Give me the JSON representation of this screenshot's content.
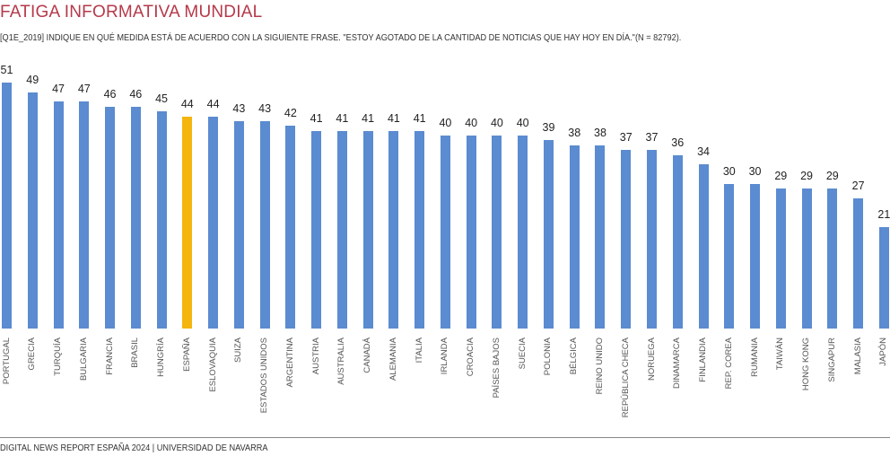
{
  "header": {
    "title": "FATIGA INFORMATIVA MUNDIAL",
    "subtitle": "[Q1E_2019] INDIQUE EN QUÉ MEDIDA ESTÁ DE ACUERDO CON LA SIGUIENTE FRASE. \"ESTOY AGOTADO DE LA CANTIDAD DE NOTICIAS QUE HAY HOY EN DÍA.\"(N = 82792)."
  },
  "footer": {
    "text": "DIGITAL NEWS REPORT ESPAÑA 2024 | UNIVERSIDAD DE NAVARRA"
  },
  "chart_data": {
    "type": "bar",
    "title": "FATIGA INFORMATIVA MUNDIAL",
    "xlabel": "",
    "ylabel": "",
    "ylim": [
      0,
      51
    ],
    "grid": false,
    "categories": [
      "PORTUGAL",
      "GRECIA",
      "TURQUÍA",
      "BULGARIA",
      "FRANCIA",
      "BRASIL",
      "HUNGRÍA",
      "ESPAÑA",
      "ESLOVAQUIA",
      "SUIZA",
      "ESTADOS UNIDOS",
      "ARGENTINA",
      "AUSTRIA",
      "AUSTRALIA",
      "CANADÁ",
      "ALEMANIA",
      "ITALIA",
      "IRLANDA",
      "CROACIA",
      "PAÍSES BAJOS",
      "SUECIA",
      "POLONIA",
      "BÉLGICA",
      "REINO UNIDO",
      "REPÚBLICA CHECA",
      "NORUEGA",
      "DINAMARCA",
      "FINLANDIA",
      "REP. COREA",
      "RUMANIA",
      "TAIWÁN",
      "HONG KONG",
      "SINGAPUR",
      "MALASIA",
      "JAPÓN"
    ],
    "values": [
      51,
      49,
      47,
      47,
      46,
      46,
      45,
      44,
      44,
      43,
      43,
      42,
      41,
      41,
      41,
      41,
      41,
      40,
      40,
      40,
      40,
      39,
      38,
      38,
      37,
      37,
      36,
      34,
      30,
      30,
      29,
      29,
      29,
      27,
      21
    ],
    "highlight": "ESPAÑA",
    "colors": {
      "default": "#5b8bd0",
      "highlight": "#f5b50f"
    }
  }
}
